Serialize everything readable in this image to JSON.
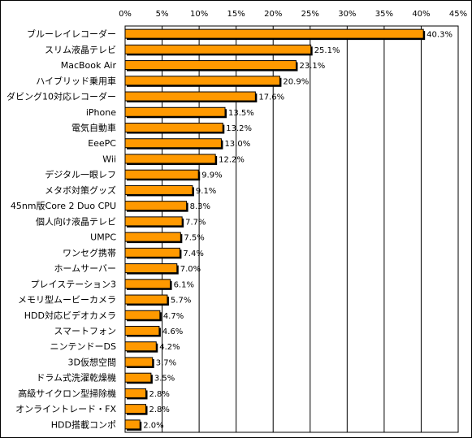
{
  "chart_data": {
    "type": "bar",
    "orientation": "horizontal",
    "categories": [
      "ブルーレイレコーダー",
      "スリム液晶テレビ",
      "MacBook Air",
      "ハイブリッド乗用車",
      "ダビング10対応レコーダー",
      "iPhone",
      "電気自動車",
      "EeePC",
      "Wii",
      "デジタル一眼レフ",
      "メタボ対策グッズ",
      "45nm版Core 2 Duo CPU",
      "個人向け液晶テレビ",
      "UMPC",
      "ワンセグ携帯",
      "ホームサーバー",
      "プレイステーション3",
      "メモリ型ムービーカメラ",
      "HDD対応ビデオカメラ",
      "スマートフォン",
      "ニンテンドーDS",
      "3D仮想空間",
      "ドラム式洗濯乾燥機",
      "高級サイクロン型掃除機",
      "オンライントレード・FX",
      "HDD搭載コンポ"
    ],
    "values": [
      40.3,
      25.1,
      23.1,
      20.9,
      17.6,
      13.5,
      13.2,
      13.0,
      12.2,
      9.9,
      9.1,
      8.3,
      7.7,
      7.5,
      7.4,
      7.0,
      6.1,
      5.7,
      4.7,
      4.6,
      4.2,
      3.7,
      3.5,
      2.8,
      2.8,
      2.0
    ],
    "value_labels": [
      "40.3%",
      "25.1%",
      "23.1%",
      "20.9%",
      "17.6%",
      "13.5%",
      "13.2%",
      "13.0%",
      "12.2%",
      "9.9%",
      "9.1%",
      "8.3%",
      "7.7%",
      "7.5%",
      "7.4%",
      "7.0%",
      "6.1%",
      "5.7%",
      "4.7%",
      "4.6%",
      "4.2%",
      "3.7%",
      "3.5%",
      "2.8%",
      "2.8%",
      "2.0%"
    ],
    "xlim": [
      0,
      45
    ],
    "x_ticks": [
      "0%",
      "5%",
      "10%",
      "15%",
      "20%",
      "25%",
      "30%",
      "35%",
      "40%",
      "45%"
    ],
    "grid": "vertical",
    "legend": "none",
    "title": "",
    "xlabel": "",
    "ylabel": "",
    "colors": {
      "bar_fill": "#ff9900",
      "bar_shadow": "#000000",
      "grid": "#000000",
      "axis": "#000000"
    }
  }
}
